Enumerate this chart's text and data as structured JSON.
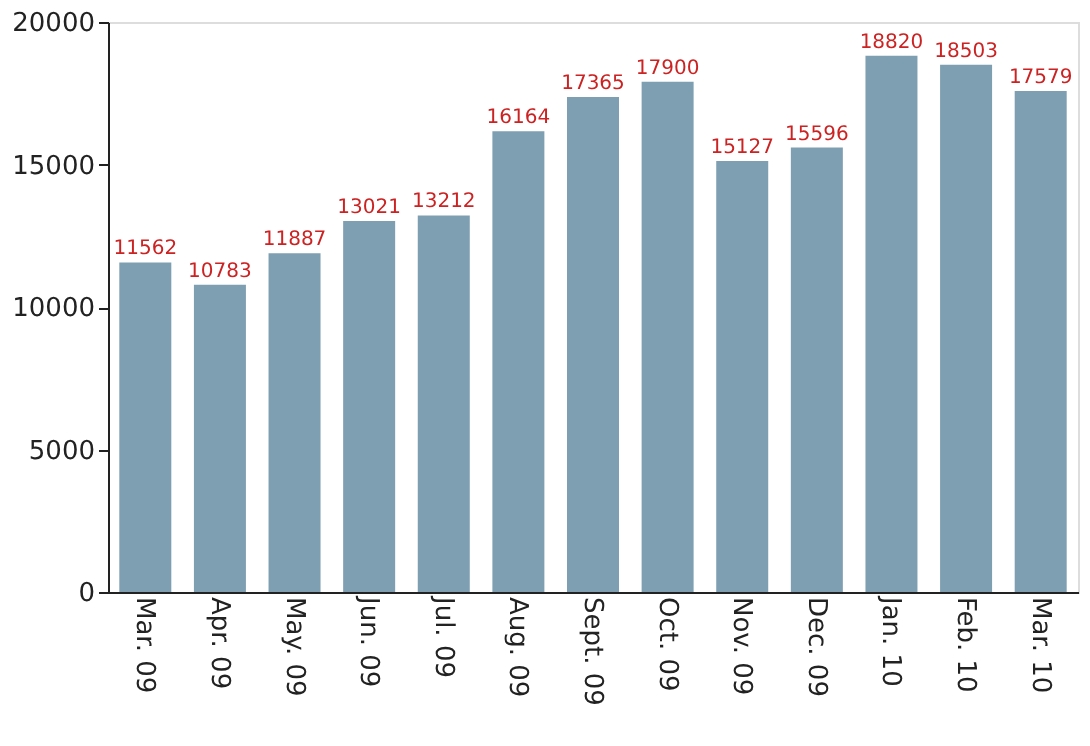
{
  "chart_data": {
    "type": "bar",
    "categories": [
      "Mar. 09",
      "Apr. 09",
      "May. 09",
      "Jun. 09",
      "Jul. 09",
      "Aug. 09",
      "Sept. 09",
      "Oct. 09",
      "Nov. 09",
      "Dec. 09",
      "Jan. 10",
      "Feb. 10",
      "Mar. 10"
    ],
    "values": [
      11562,
      10783,
      11887,
      13021,
      13212,
      16164,
      17365,
      17900,
      15127,
      15596,
      18820,
      18503,
      17579
    ],
    "color": "#7e9fb2",
    "ylim": [
      0,
      20000
    ],
    "yticks": [
      0,
      5000,
      10000,
      15000,
      20000
    ],
    "grid": false,
    "data_labels": true
  }
}
